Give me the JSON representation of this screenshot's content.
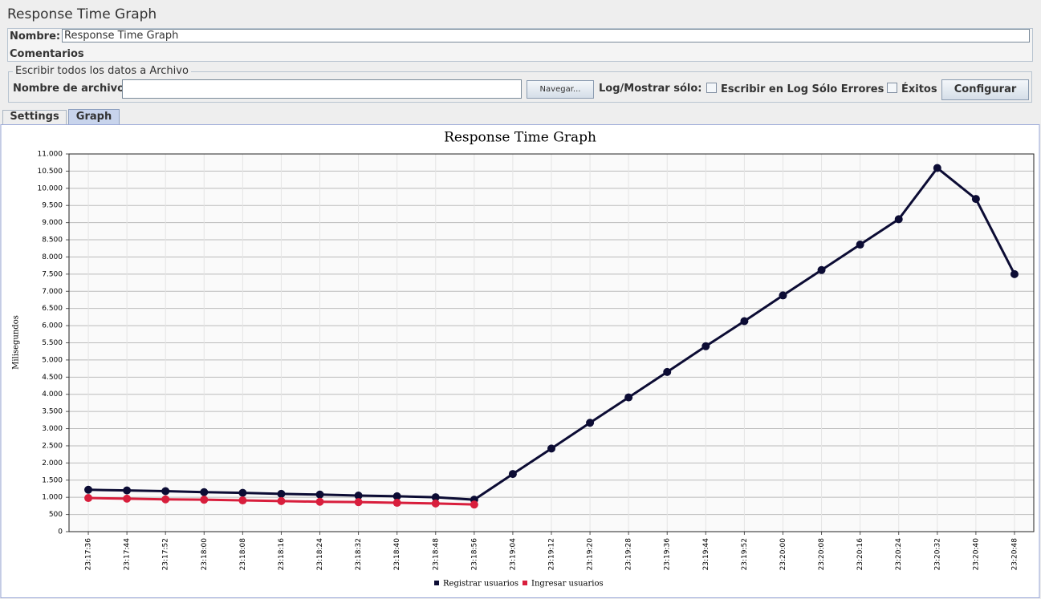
{
  "header": {
    "title": "Response Time Graph"
  },
  "form": {
    "name_label": "Nombre:",
    "name_value": "Response Time Graph",
    "comments_label": "Comentarios"
  },
  "file": {
    "group_title": "Escribir todos los datos a Archivo",
    "filename_label": "Nombre de archivo",
    "browse_button": "Navegar...",
    "log_label": "Log/Mostrar sólo:",
    "errors_label": "Escribir en Log Sólo Errores",
    "success_label": "Éxitos",
    "configure_button": "Configurar"
  },
  "tabs": [
    "Settings",
    "Graph"
  ],
  "chart_data": {
    "type": "line",
    "title": "Response Time Graph",
    "y_label": "Milisegundos",
    "categories": [
      "23:17:36",
      "23:17:44",
      "23:17:52",
      "23:18:00",
      "23:18:08",
      "23:18:16",
      "23:18:24",
      "23:18:32",
      "23:18:40",
      "23:18:48",
      "23:18:56",
      "23:19:04",
      "23:19:12",
      "23:19:20",
      "23:19:28",
      "23:19:36",
      "23:19:44",
      "23:19:52",
      "23:20:00",
      "23:20:08",
      "23:20:16",
      "23:20:24",
      "23:20:32",
      "23:20:40",
      "23:20:48"
    ],
    "series": [
      {
        "name": "Registrar usuarios",
        "color": "#0c0c34",
        "values": [
          1220,
          1200,
          1180,
          1150,
          1130,
          1100,
          1080,
          1050,
          1030,
          1000,
          930,
          1680,
          2420,
          3170,
          3910,
          4650,
          5400,
          6130,
          6880,
          7620,
          8360,
          9100,
          10590,
          9690,
          7500
        ]
      },
      {
        "name": "Ingresar usuarios",
        "color": "#d81e3c",
        "values": [
          980,
          960,
          940,
          930,
          910,
          890,
          870,
          860,
          840,
          820,
          790,
          null,
          null,
          null,
          null,
          null,
          null,
          null,
          null,
          null,
          null,
          null,
          null,
          null,
          null
        ]
      }
    ],
    "ylim": [
      0,
      11000
    ],
    "yticks": [
      0,
      500,
      {
        "value": 1000,
        "label": "1.000"
      },
      {
        "value": 1500,
        "label": "1.500"
      },
      {
        "value": 2000,
        "label": "2.000"
      },
      {
        "value": 2500,
        "label": "2.500"
      },
      {
        "value": 3000,
        "label": "3.000"
      },
      {
        "value": 3500,
        "label": "3.500"
      },
      {
        "value": 4000,
        "label": "4.000"
      },
      {
        "value": 4500,
        "label": "4.500"
      },
      {
        "value": 5000,
        "label": "5.000"
      },
      {
        "value": 5500,
        "label": "5.500"
      },
      {
        "value": 6000,
        "label": "6.000"
      },
      {
        "value": 6500,
        "label": "6.500"
      },
      {
        "value": 7000,
        "label": "7.000"
      },
      {
        "value": 7500,
        "label": "7.500"
      },
      {
        "value": 8000,
        "label": "8.000"
      },
      {
        "value": 8500,
        "label": "8.500"
      },
      {
        "value": 9000,
        "label": "9.000"
      },
      {
        "value": 9500,
        "label": "9.500"
      },
      {
        "value": 10000,
        "label": "10.000"
      },
      {
        "value": 10500,
        "label": "10.500"
      },
      {
        "value": 11000,
        "label": "11.000"
      }
    ],
    "grid": true
  }
}
